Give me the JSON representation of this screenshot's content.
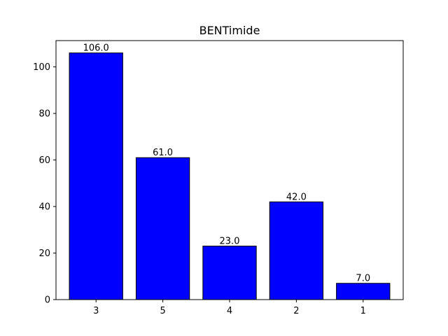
{
  "chart_data": {
    "type": "bar",
    "title": "BENTimide",
    "xlabel": "",
    "ylabel": "",
    "categories": [
      "3",
      "5",
      "4",
      "2",
      "1"
    ],
    "values": [
      106.0,
      61.0,
      23.0,
      42.0,
      7.0
    ],
    "data_labels": [
      "106.0",
      "61.0",
      "23.0",
      "42.0",
      "7.0"
    ],
    "ylim": [
      0,
      111.3
    ],
    "yticks": [
      0,
      20,
      40,
      60,
      80,
      100
    ],
    "ytick_labels": [
      "0",
      "20",
      "40",
      "60",
      "80",
      "100"
    ],
    "grid": false,
    "legend": "none",
    "colors": {
      "bar_fill": "#0000ff",
      "bar_edge": "#000000",
      "axis": "#000000",
      "background": "#ffffff"
    }
  }
}
